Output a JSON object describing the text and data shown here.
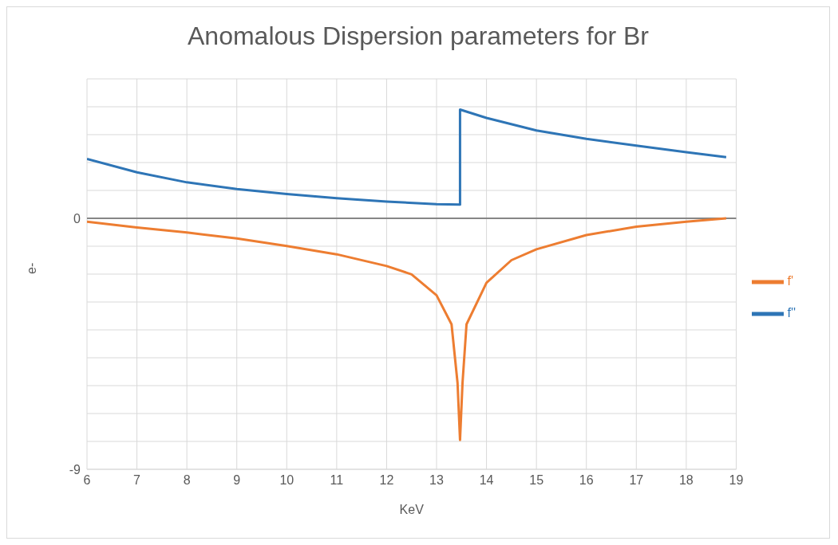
{
  "chart_data": {
    "type": "line",
    "title": "Anomalous Dispersion parameters for Br",
    "xlabel": "KeV",
    "ylabel": "e-",
    "xlim": [
      6,
      19
    ],
    "xticks": [
      6,
      7,
      8,
      9,
      10,
      11,
      12,
      13,
      14,
      15,
      16,
      17,
      18,
      19
    ],
    "ylim": [
      -9,
      5
    ],
    "yticks": [
      -9,
      {
        "value": -8,
        "label": null
      },
      {
        "value": -7,
        "label": null
      },
      {
        "value": -6,
        "label": null
      },
      {
        "value": -5,
        "label": null
      },
      {
        "value": -4,
        "label": null
      },
      {
        "value": -3,
        "label": null
      },
      {
        "value": -2,
        "label": null
      },
      {
        "value": -1,
        "label": null
      },
      0,
      {
        "value": 1,
        "label": null
      },
      {
        "value": 2,
        "label": null
      },
      {
        "value": 3,
        "label": null
      },
      {
        "value": 4,
        "label": null
      },
      {
        "value": 5,
        "label": null
      }
    ],
    "grid": true,
    "legend": "right",
    "marker": "none",
    "line_style": "solid",
    "ref_lines": [
      {
        "axis": "y",
        "value": 0,
        "color": "#868686"
      }
    ],
    "series": [
      {
        "name": "f'",
        "color": "#ed7d31",
        "x": [
          6,
          7,
          8,
          9,
          10,
          11,
          12,
          12.5,
          13,
          13.3,
          13.42,
          13.47,
          13.52,
          13.6,
          14,
          14.5,
          15,
          16,
          17,
          18,
          18.8
        ],
        "values": [
          -0.12,
          -0.33,
          -0.51,
          -0.72,
          -0.99,
          -1.29,
          -1.71,
          -2.01,
          -2.76,
          -3.8,
          -5.9,
          -7.95,
          -5.9,
          -3.8,
          -2.31,
          -1.5,
          -1.11,
          -0.6,
          -0.3,
          -0.12,
          0
        ]
      },
      {
        "name": "f''",
        "color": "#2e75b6",
        "x": [
          6,
          7,
          8,
          9,
          10,
          11,
          12,
          13,
          13.47,
          13.47,
          14,
          15,
          16,
          17,
          18,
          18.8
        ],
        "values": [
          2.13,
          1.65,
          1.29,
          1.05,
          0.87,
          0.72,
          0.6,
          0.51,
          0.49,
          3.9,
          3.6,
          3.15,
          2.85,
          2.61,
          2.37,
          2.19
        ]
      }
    ]
  }
}
